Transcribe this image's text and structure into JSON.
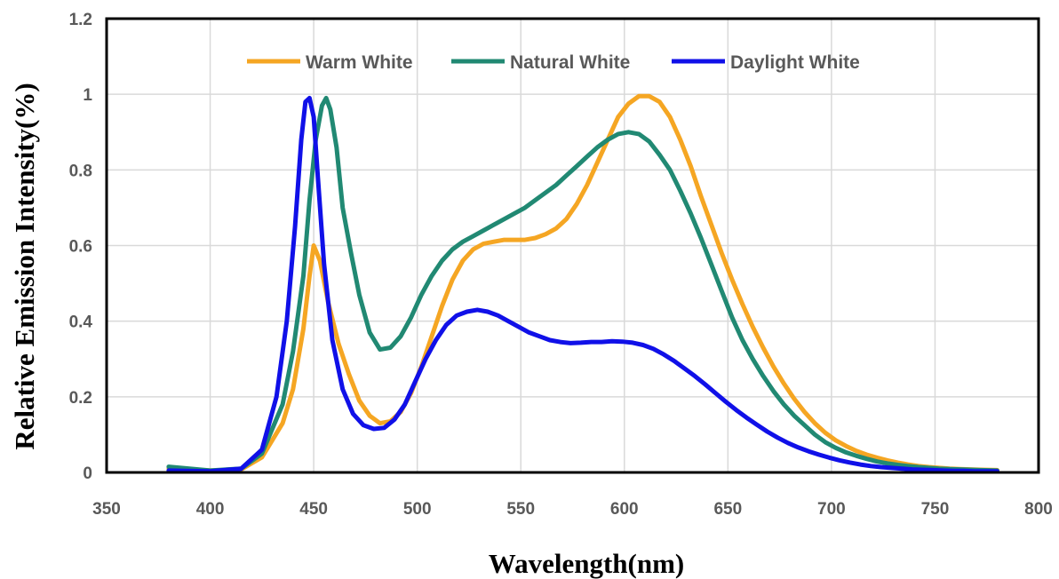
{
  "chart_data": {
    "type": "line",
    "title": "",
    "xlabel": "Wavelength(nm)",
    "ylabel": "Relative  Emission  Intensity(%)",
    "xlim": [
      350,
      800
    ],
    "ylim": [
      0,
      1.2
    ],
    "xticks": [
      350,
      400,
      450,
      500,
      550,
      600,
      650,
      700,
      750,
      800
    ],
    "yticks": [
      "0",
      "0.2",
      "0.4",
      "0.6",
      "0.8",
      "1",
      "1.2"
    ],
    "grid": true,
    "legend_position": "top-center",
    "series": [
      {
        "name": "Warm White",
        "color": "#f5a623",
        "x": [
          380,
          400,
          415,
          425,
          435,
          440,
          445,
          448,
          450,
          453,
          457,
          462,
          467,
          472,
          477,
          482,
          487,
          492,
          497,
          502,
          507,
          512,
          517,
          522,
          527,
          532,
          537,
          542,
          547,
          552,
          557,
          562,
          567,
          572,
          577,
          582,
          587,
          592,
          597,
          602,
          607,
          612,
          617,
          622,
          627,
          632,
          637,
          642,
          647,
          652,
          657,
          662,
          667,
          672,
          677,
          682,
          687,
          692,
          697,
          702,
          707,
          712,
          717,
          722,
          727,
          732,
          737,
          742,
          747,
          752,
          757,
          762,
          767,
          772,
          780
        ],
        "y": [
          0.01,
          0.005,
          0.008,
          0.04,
          0.13,
          0.22,
          0.38,
          0.52,
          0.6,
          0.56,
          0.45,
          0.34,
          0.26,
          0.19,
          0.15,
          0.13,
          0.135,
          0.16,
          0.21,
          0.28,
          0.36,
          0.44,
          0.51,
          0.56,
          0.59,
          0.605,
          0.61,
          0.615,
          0.615,
          0.615,
          0.62,
          0.63,
          0.645,
          0.67,
          0.71,
          0.76,
          0.82,
          0.88,
          0.94,
          0.975,
          0.995,
          0.995,
          0.98,
          0.94,
          0.88,
          0.81,
          0.73,
          0.655,
          0.58,
          0.51,
          0.445,
          0.385,
          0.33,
          0.28,
          0.235,
          0.195,
          0.16,
          0.13,
          0.105,
          0.085,
          0.07,
          0.057,
          0.047,
          0.039,
          0.032,
          0.026,
          0.021,
          0.017,
          0.014,
          0.012,
          0.01,
          0.009,
          0.008,
          0.007,
          0.006
        ]
      },
      {
        "name": "Natural White",
        "color": "#218973",
        "x": [
          380,
          400,
          415,
          425,
          435,
          440,
          445,
          448,
          451,
          454,
          456,
          458,
          461,
          464,
          468,
          472,
          477,
          482,
          487,
          492,
          497,
          502,
          507,
          512,
          517,
          522,
          527,
          532,
          537,
          542,
          547,
          552,
          557,
          562,
          567,
          572,
          577,
          582,
          587,
          592,
          597,
          602,
          607,
          612,
          617,
          622,
          627,
          632,
          637,
          642,
          647,
          652,
          657,
          662,
          667,
          672,
          677,
          682,
          687,
          692,
          697,
          702,
          707,
          712,
          717,
          722,
          727,
          732,
          737,
          742,
          747,
          752,
          757,
          762,
          767,
          772,
          780
        ],
        "y": [
          0.015,
          0.005,
          0.01,
          0.05,
          0.18,
          0.32,
          0.52,
          0.72,
          0.88,
          0.97,
          0.99,
          0.96,
          0.86,
          0.7,
          0.58,
          0.47,
          0.37,
          0.325,
          0.33,
          0.36,
          0.41,
          0.47,
          0.52,
          0.56,
          0.59,
          0.61,
          0.625,
          0.64,
          0.655,
          0.67,
          0.685,
          0.7,
          0.72,
          0.74,
          0.76,
          0.785,
          0.81,
          0.835,
          0.86,
          0.88,
          0.895,
          0.9,
          0.895,
          0.875,
          0.84,
          0.8,
          0.745,
          0.685,
          0.62,
          0.55,
          0.48,
          0.41,
          0.35,
          0.3,
          0.255,
          0.215,
          0.18,
          0.15,
          0.125,
          0.1,
          0.08,
          0.065,
          0.053,
          0.044,
          0.036,
          0.029,
          0.024,
          0.02,
          0.017,
          0.014,
          0.012,
          0.01,
          0.009,
          0.008,
          0.007,
          0.006,
          0.005
        ]
      },
      {
        "name": "Daylight White",
        "color": "#1010e8",
        "x": [
          380,
          400,
          415,
          425,
          432,
          437,
          441,
          444,
          446,
          448,
          450,
          452,
          455,
          459,
          464,
          469,
          474,
          479,
          484,
          489,
          494,
          499,
          504,
          509,
          514,
          519,
          524,
          529,
          534,
          539,
          544,
          549,
          554,
          559,
          564,
          569,
          574,
          579,
          584,
          589,
          594,
          599,
          604,
          609,
          614,
          619,
          624,
          629,
          634,
          639,
          644,
          649,
          654,
          659,
          664,
          669,
          674,
          679,
          684,
          689,
          694,
          699,
          704,
          709,
          714,
          719,
          724,
          729,
          734,
          739,
          744,
          749,
          754,
          759,
          764,
          769,
          774,
          780
        ],
        "y": [
          0.005,
          0.003,
          0.01,
          0.06,
          0.2,
          0.4,
          0.65,
          0.88,
          0.98,
          0.99,
          0.94,
          0.78,
          0.55,
          0.35,
          0.22,
          0.155,
          0.125,
          0.115,
          0.118,
          0.14,
          0.18,
          0.24,
          0.3,
          0.35,
          0.39,
          0.415,
          0.425,
          0.43,
          0.425,
          0.415,
          0.4,
          0.385,
          0.37,
          0.36,
          0.35,
          0.345,
          0.342,
          0.343,
          0.345,
          0.345,
          0.347,
          0.346,
          0.343,
          0.337,
          0.327,
          0.312,
          0.295,
          0.275,
          0.255,
          0.233,
          0.21,
          0.187,
          0.165,
          0.145,
          0.126,
          0.108,
          0.092,
          0.078,
          0.066,
          0.056,
          0.047,
          0.039,
          0.032,
          0.026,
          0.021,
          0.017,
          0.014,
          0.012,
          0.01,
          0.008,
          0.007,
          0.006,
          0.005,
          0.004,
          0.004,
          0.003,
          0.003,
          0.003
        ]
      }
    ]
  }
}
